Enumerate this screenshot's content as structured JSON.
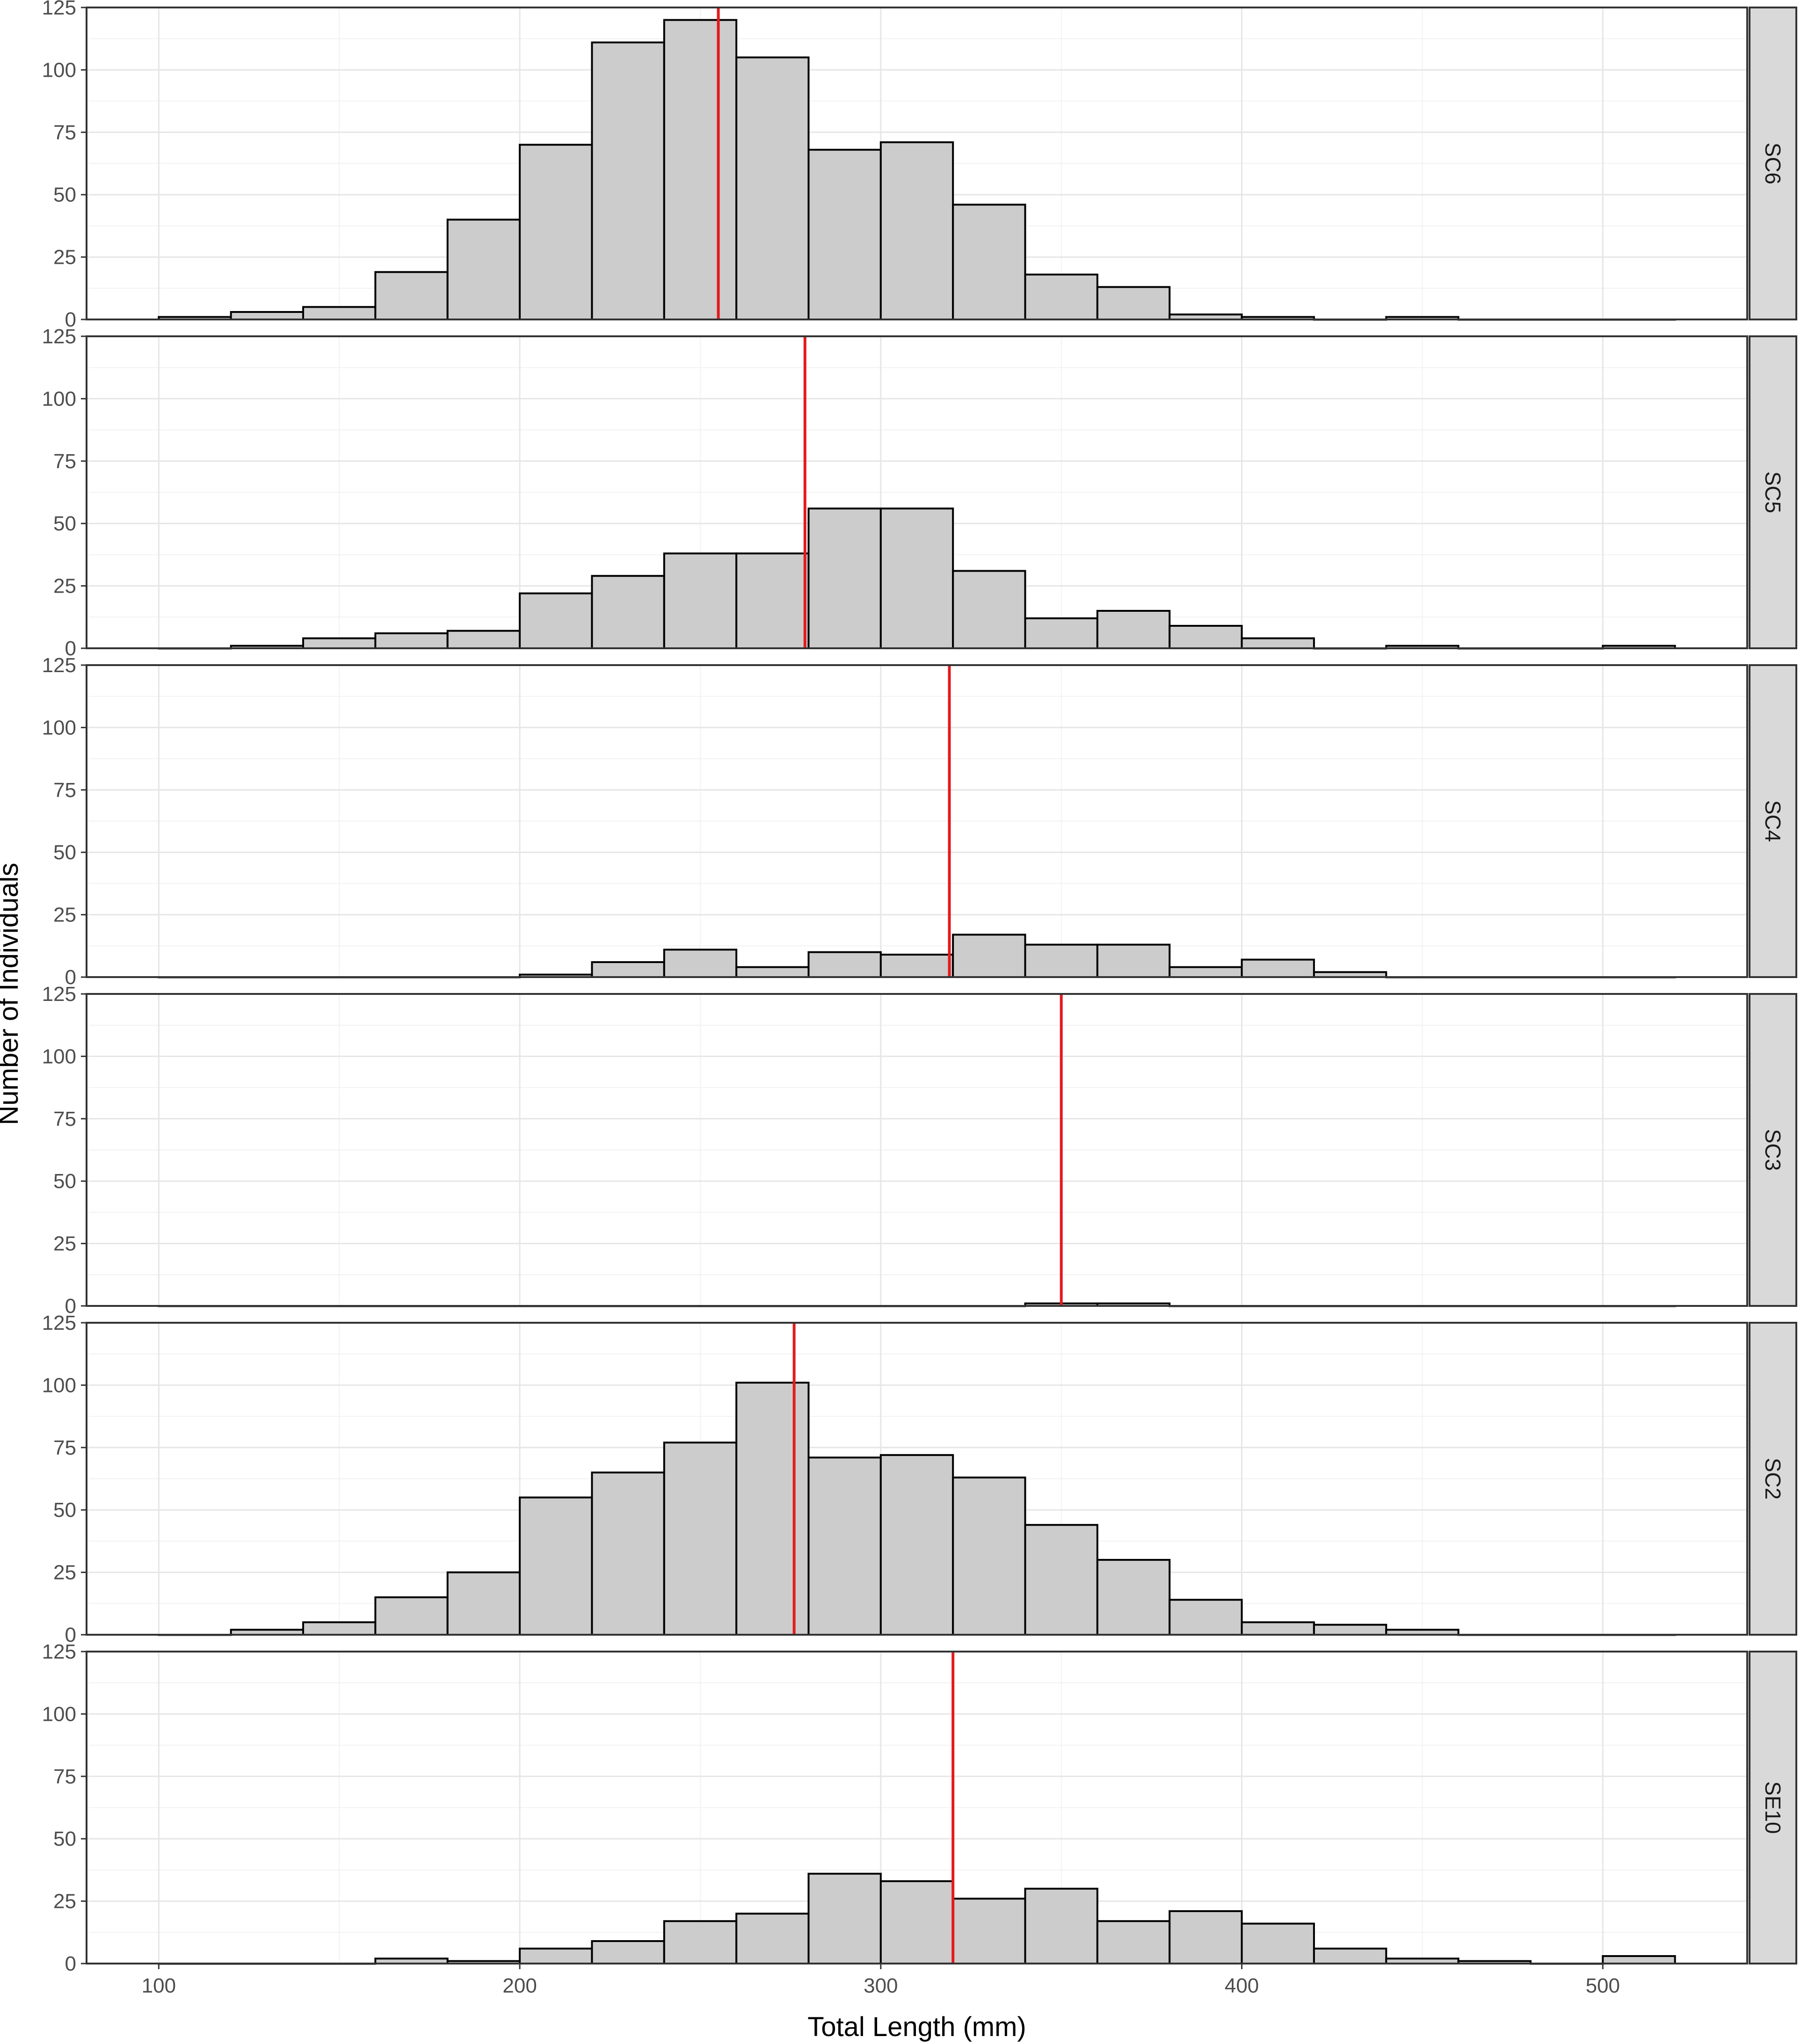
{
  "chart_data": {
    "type": "bar",
    "subtype": "faceted-histogram",
    "xlabel": "Total Length (mm)",
    "ylabel": "Number of Individuals",
    "xlim": [
      80,
      540
    ],
    "ylim": [
      0,
      125
    ],
    "x_ticks": [
      100,
      200,
      300,
      400,
      500
    ],
    "y_ticks": [
      0,
      25,
      50,
      75,
      100,
      125
    ],
    "bin_width": 20,
    "bin_starts": [
      100,
      120,
      140,
      160,
      180,
      200,
      220,
      240,
      260,
      280,
      300,
      320,
      340,
      360,
      380,
      400,
      420,
      440,
      460,
      480,
      500
    ],
    "grid": true,
    "mean_line_color": "#e41a1c",
    "bar_fill": "#cccccc",
    "bar_outline": "#000000",
    "strip_fill": "#d9d9d9",
    "facets": [
      {
        "name": "SC6",
        "mean": 255,
        "values": [
          1,
          3,
          5,
          19,
          40,
          70,
          111,
          120,
          105,
          68,
          71,
          46,
          18,
          13,
          2,
          1,
          0,
          1,
          0,
          0,
          0
        ]
      },
      {
        "name": "SC5",
        "mean": 279,
        "values": [
          0,
          1,
          4,
          6,
          7,
          22,
          29,
          38,
          38,
          56,
          56,
          31,
          12,
          15,
          9,
          4,
          0,
          1,
          0,
          0,
          1
        ]
      },
      {
        "name": "SC4",
        "mean": 319,
        "values": [
          0,
          0,
          0,
          0,
          0,
          1,
          6,
          11,
          4,
          10,
          9,
          17,
          13,
          13,
          4,
          7,
          2,
          0,
          0,
          0,
          0
        ]
      },
      {
        "name": "SC3",
        "mean": 350,
        "values": [
          0,
          0,
          0,
          0,
          0,
          0,
          0,
          0,
          0,
          0,
          0,
          0,
          1,
          1,
          0,
          0,
          0,
          0,
          0,
          0,
          0
        ]
      },
      {
        "name": "SC2",
        "mean": 276,
        "values": [
          0,
          2,
          5,
          15,
          25,
          55,
          65,
          77,
          101,
          71,
          72,
          63,
          44,
          30,
          14,
          5,
          4,
          2,
          0,
          0,
          0
        ]
      },
      {
        "name": "SE10",
        "mean": 320,
        "values": [
          0,
          0,
          0,
          2,
          1,
          6,
          9,
          17,
          20,
          36,
          33,
          26,
          30,
          17,
          21,
          16,
          6,
          2,
          1,
          0,
          3
        ]
      }
    ]
  }
}
